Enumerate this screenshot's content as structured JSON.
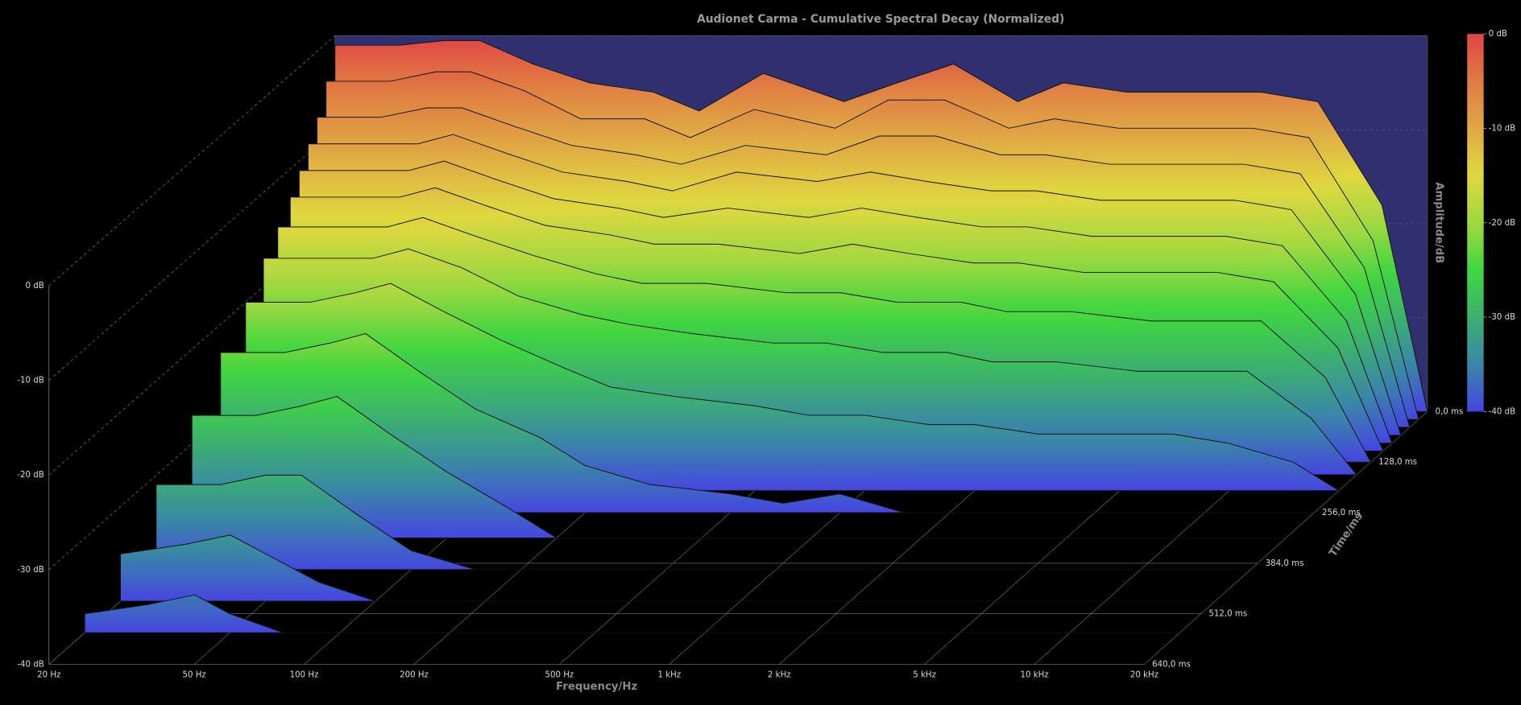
{
  "chart_data": {
    "type": "waterfall",
    "title": "Audionet Carma - Cumulative Spectral Decay (Normalized)",
    "x_label": "Frequency/Hz",
    "t_label": "Time/ms",
    "z_label": "Amplitude/dB",
    "xscale": "log",
    "xlim": [
      20,
      20000
    ],
    "tlim": [
      0,
      640
    ],
    "zlim": [
      -40,
      0
    ],
    "xticks": [
      {
        "value": 20,
        "label": "20 Hz"
      },
      {
        "value": 50,
        "label": "50 Hz"
      },
      {
        "value": 100,
        "label": "100 Hz"
      },
      {
        "value": 200,
        "label": "200 Hz"
      },
      {
        "value": 500,
        "label": "500 Hz"
      },
      {
        "value": 1000,
        "label": "1 kHz"
      },
      {
        "value": 2000,
        "label": "2 kHz"
      },
      {
        "value": 5000,
        "label": "5 kHz"
      },
      {
        "value": 10000,
        "label": "10 kHz"
      },
      {
        "value": 20000,
        "label": "20 kHz"
      }
    ],
    "tticks": [
      {
        "value": 0,
        "label": "0,0 ms"
      },
      {
        "value": 128,
        "label": "128,0 ms"
      },
      {
        "value": 256,
        "label": "256,0 ms"
      },
      {
        "value": 384,
        "label": "384,0 ms"
      },
      {
        "value": 512,
        "label": "512,0 ms"
      },
      {
        "value": 640,
        "label": "640,0 ms"
      }
    ],
    "zticks": [
      {
        "value": 0,
        "label": "0 dB"
      },
      {
        "value": -10,
        "label": "-10 dB"
      },
      {
        "value": -20,
        "label": "-20 dB"
      },
      {
        "value": -30,
        "label": "-30 dB"
      },
      {
        "value": -40,
        "label": "-40 dB"
      }
    ],
    "colormap": [
      "#4545e0",
      "#3a86a8",
      "#3cb070",
      "#40d640",
      "#a0d840",
      "#e0d840",
      "#e0a844",
      "#e07a44",
      "#e04444"
    ],
    "back_wall_color": "#303070",
    "x": [
      20,
      30,
      40,
      50,
      70,
      100,
      150,
      200,
      300,
      500,
      700,
      1000,
      1500,
      2000,
      3000,
      5000,
      7000,
      10000,
      15000,
      20000
    ],
    "series": [
      {
        "t": 0,
        "values": [
          -1,
          -1,
          -0.5,
          -0.5,
          -3,
          -5,
          -6,
          -8,
          -4,
          -7,
          -5,
          -3,
          -7,
          -5,
          -6,
          -6,
          -6,
          -7,
          -18,
          -40
        ]
      },
      {
        "t": 20,
        "values": [
          -4,
          -4,
          -3,
          -3,
          -5,
          -8,
          -8,
          -10,
          -7,
          -9,
          -6,
          -6,
          -9,
          -8,
          -9,
          -9,
          -9,
          -10,
          -21,
          -40
        ]
      },
      {
        "t": 40,
        "values": [
          -7,
          -7,
          -6,
          -6,
          -8,
          -10,
          -11,
          -12,
          -10,
          -11,
          -9,
          -9,
          -11,
          -11,
          -12,
          -12,
          -12,
          -13,
          -23,
          -40
        ]
      },
      {
        "t": 60,
        "values": [
          -9,
          -9,
          -9,
          -8,
          -10,
          -12,
          -13,
          -14,
          -12,
          -13,
          -12,
          -13,
          -14,
          -14,
          -15,
          -15,
          -15,
          -16,
          -25,
          -40
        ]
      },
      {
        "t": 80,
        "values": [
          -11,
          -11,
          -11,
          -10,
          -12,
          -14,
          -15,
          -16,
          -15,
          -16,
          -15,
          -16,
          -17,
          -17,
          -18,
          -18,
          -18,
          -19,
          -27,
          -40
        ]
      },
      {
        "t": 100,
        "values": [
          -13,
          -13,
          -13,
          -12,
          -14,
          -16,
          -17,
          -18,
          -18,
          -19,
          -18,
          -19,
          -20,
          -20,
          -21,
          -21,
          -21,
          -22,
          -29,
          -40
        ]
      },
      {
        "t": 128,
        "values": [
          -15,
          -15,
          -15,
          -14,
          -16,
          -18,
          -20,
          -21,
          -21,
          -22,
          -22,
          -23,
          -23,
          -24,
          -24,
          -25,
          -25,
          -25,
          -31,
          -40
        ]
      },
      {
        "t": 160,
        "values": [
          -17,
          -17,
          -17,
          -16,
          -18,
          -21,
          -23,
          -24,
          -25,
          -26,
          -26,
          -27,
          -27,
          -28,
          -28,
          -29,
          -29,
          -29,
          -34,
          -40
        ]
      },
      {
        "t": 200,
        "values": [
          -20,
          -20,
          -19,
          -18,
          -21,
          -24,
          -27,
          -29,
          -30,
          -31,
          -32,
          -32,
          -33,
          -33,
          -34,
          -34,
          -34,
          -35,
          -37,
          -40
        ]
      },
      {
        "t": 256,
        "values": [
          -23,
          -23,
          -22,
          -21,
          -25,
          -29,
          -32,
          -35,
          -37,
          -38,
          -39,
          -38,
          -40,
          -40,
          -40,
          -40,
          -40,
          -40,
          -40,
          -40
        ]
      },
      {
        "t": 320,
        "values": [
          -27,
          -27,
          -26,
          -25,
          -29,
          -33,
          -37,
          -40,
          -40,
          -40,
          -40,
          -40,
          -40,
          -40,
          -40,
          -40,
          -40,
          -40,
          -40,
          -40
        ]
      },
      {
        "t": 400,
        "values": [
          -31,
          -31,
          -30,
          -30,
          -34,
          -38,
          -40,
          -40,
          -40,
          -40,
          -40,
          -40,
          -40,
          -40,
          -40,
          -40,
          -40,
          -40,
          -40,
          -40
        ]
      },
      {
        "t": 480,
        "values": [
          -35,
          -34,
          -33,
          -35,
          -38,
          -40,
          -40,
          -40,
          -40,
          -40,
          -40,
          -40,
          -40,
          -40,
          -40,
          -40,
          -40,
          -40,
          -40,
          -40
        ]
      },
      {
        "t": 560,
        "values": [
          -38,
          -37,
          -36,
          -38,
          -40,
          -40,
          -40,
          -40,
          -40,
          -40,
          -40,
          -40,
          -40,
          -40,
          -40,
          -40,
          -40,
          -40,
          -40,
          -40
        ]
      }
    ]
  }
}
